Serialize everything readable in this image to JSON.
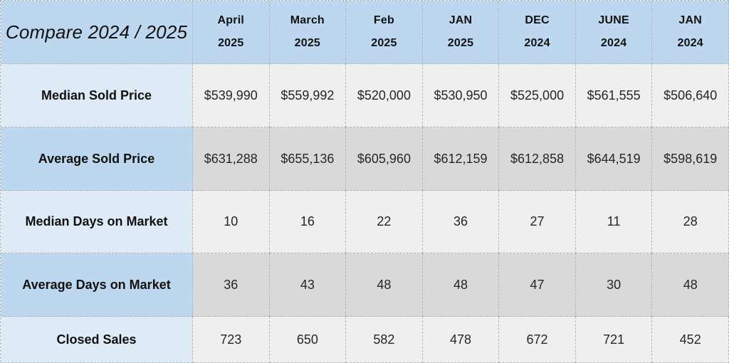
{
  "table": {
    "title": "Compare 2024 / 2025",
    "columns": [
      {
        "month": "April",
        "year": "2025"
      },
      {
        "month": "March",
        "year": "2025"
      },
      {
        "month": "Feb",
        "year": "2025"
      },
      {
        "month": "JAN",
        "year": "2025"
      },
      {
        "month": "DEC",
        "year": "2024"
      },
      {
        "month": "JUNE",
        "year": "2024"
      },
      {
        "month": "JAN",
        "year": "2024"
      }
    ],
    "rows": [
      {
        "label": "Median Sold Price",
        "values": [
          "$539,990",
          "$559,992",
          "$520,000",
          "$530,950",
          "$525,000",
          "$561,555",
          "$506,640"
        ]
      },
      {
        "label": "Average Sold Price",
        "values": [
          "$631,288",
          "$655,136",
          "$605,960",
          "$612,159",
          "$612,858",
          "$644,519",
          "$598,619"
        ]
      },
      {
        "label": "Median Days on Market",
        "values": [
          "10",
          "16",
          "22",
          "36",
          "27",
          "11",
          "28"
        ]
      },
      {
        "label": "Average Days on Market",
        "values": [
          "36",
          "43",
          "48",
          "48",
          "47",
          "30",
          "48"
        ]
      },
      {
        "label": "Closed Sales",
        "values": [
          "723",
          "650",
          "582",
          "478",
          "672",
          "721",
          "452"
        ]
      }
    ]
  },
  "colors": {
    "header_blue": "#bdd7ee",
    "label_light_blue": "#deeaf6",
    "data_gray_dark": "#d9d9d9",
    "data_gray_light": "#efefef",
    "border": "#b5b5b5",
    "text_dark": "#111111",
    "text_value": "#262626"
  },
  "chart_data": {
    "type": "table",
    "title": "Compare 2024 / 2025",
    "categories": [
      "April 2025",
      "March 2025",
      "Feb 2025",
      "JAN 2025",
      "DEC 2024",
      "JUNE 2024",
      "JAN 2024"
    ],
    "series": [
      {
        "name": "Median Sold Price",
        "values": [
          539990,
          559992,
          520000,
          530950,
          525000,
          561555,
          506640
        ]
      },
      {
        "name": "Average Sold Price",
        "values": [
          631288,
          655136,
          605960,
          612159,
          612858,
          644519,
          598619
        ]
      },
      {
        "name": "Median Days on Market",
        "values": [
          10,
          16,
          22,
          36,
          27,
          11,
          28
        ]
      },
      {
        "name": "Average Days on Market",
        "values": [
          36,
          43,
          48,
          48,
          47,
          30,
          48
        ]
      },
      {
        "name": "Closed Sales",
        "values": [
          723,
          650,
          582,
          478,
          672,
          721,
          452
        ]
      }
    ],
    "legend_position": "none",
    "grid": "dashed-cell-borders"
  }
}
